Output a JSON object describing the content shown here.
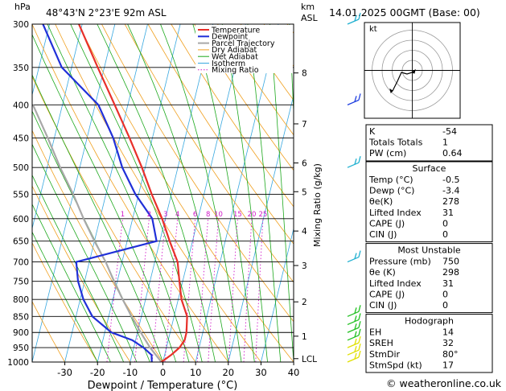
{
  "header": {
    "pressure_unit": "hPa",
    "location": "48°43'N  2°23'E  92m  ASL",
    "height_unit_line1": "km",
    "height_unit_line2": "ASL",
    "datetime": "14.01.2025  00GMT  (Base: 00)"
  },
  "footer": {
    "copyright": "© weatheronline.co.uk"
  },
  "colors": {
    "temperature": "#e8302a",
    "dewpoint": "#2030d8",
    "parcel": "#a8a8a8",
    "dry_adiabat": "#f0a020",
    "wet_adiabat": "#1ca81c",
    "isotherm": "#38a8e0",
    "mixing_ratio": "#d018c8"
  },
  "chart_data": {
    "type": "skew-t",
    "xlabel": "Dewpoint / Temperature (°C)",
    "ylabel_right": "Mixing Ratio (g/kg)",
    "x_ticks": [
      -30,
      -20,
      -10,
      0,
      10,
      20,
      30,
      40
    ],
    "pressure_ticks": [
      300,
      350,
      400,
      450,
      500,
      550,
      600,
      650,
      700,
      750,
      800,
      850,
      900,
      950,
      1000
    ],
    "height_ticks": [
      {
        "label": "8",
        "p": 357
      },
      {
        "label": "7",
        "p": 428
      },
      {
        "label": "6",
        "p": 492
      },
      {
        "label": "5",
        "p": 545
      },
      {
        "label": "4",
        "p": 627
      },
      {
        "label": "3",
        "p": 709
      },
      {
        "label": "2",
        "p": 807
      },
      {
        "label": "1",
        "p": 912
      },
      {
        "label": "LCL",
        "p": 988
      }
    ],
    "mixing_ratio_labels": [
      {
        "label": "1",
        "value": 1
      },
      {
        "label": "2",
        "value": 2
      },
      {
        "label": "3",
        "value": 3
      },
      {
        "label": "4",
        "value": 4
      },
      {
        "label": "6",
        "value": 6
      },
      {
        "label": "8",
        "value": 8
      },
      {
        "label": "10",
        "value": 10
      },
      {
        "label": "15",
        "value": 15
      },
      {
        "label": "20",
        "value": 20
      },
      {
        "label": "25",
        "value": 25
      }
    ],
    "legend": [
      "Temperature",
      "Dewpoint",
      "Parcel Trajectory",
      "Dry Adiabat",
      "Wet Adiabat",
      "Isotherm",
      "Mixing Ratio"
    ],
    "temperature": [
      {
        "p": 1000,
        "t": -0.5
      },
      {
        "p": 975,
        "t": 2
      },
      {
        "p": 950,
        "t": 4
      },
      {
        "p": 925,
        "t": 5
      },
      {
        "p": 900,
        "t": 5
      },
      {
        "p": 850,
        "t": 4
      },
      {
        "p": 800,
        "t": 1
      },
      {
        "p": 750,
        "t": -1
      },
      {
        "p": 700,
        "t": -3
      },
      {
        "p": 650,
        "t": -7
      },
      {
        "p": 600,
        "t": -11
      },
      {
        "p": 550,
        "t": -16
      },
      {
        "p": 500,
        "t": -21
      },
      {
        "p": 450,
        "t": -27
      },
      {
        "p": 400,
        "t": -34
      },
      {
        "p": 350,
        "t": -42
      },
      {
        "p": 300,
        "t": -51
      }
    ],
    "dewpoint": [
      {
        "p": 1000,
        "t": -3.4
      },
      {
        "p": 975,
        "t": -4
      },
      {
        "p": 950,
        "t": -7
      },
      {
        "p": 925,
        "t": -11
      },
      {
        "p": 900,
        "t": -18
      },
      {
        "p": 850,
        "t": -25
      },
      {
        "p": 800,
        "t": -29
      },
      {
        "p": 750,
        "t": -32
      },
      {
        "p": 700,
        "t": -34
      },
      {
        "p": 650,
        "t": -11
      },
      {
        "p": 600,
        "t": -14
      },
      {
        "p": 550,
        "t": -21
      },
      {
        "p": 500,
        "t": -27
      },
      {
        "p": 450,
        "t": -32
      },
      {
        "p": 400,
        "t": -39
      },
      {
        "p": 350,
        "t": -53
      },
      {
        "p": 300,
        "t": -62
      }
    ],
    "parcel": [
      {
        "p": 1000,
        "t": -0.5
      },
      {
        "p": 988,
        "t": -1.5
      },
      {
        "p": 950,
        "t": -5
      },
      {
        "p": 900,
        "t": -9
      },
      {
        "p": 850,
        "t": -13
      },
      {
        "p": 800,
        "t": -17
      },
      {
        "p": 750,
        "t": -21
      },
      {
        "p": 700,
        "t": -25
      },
      {
        "p": 650,
        "t": -30
      },
      {
        "p": 600,
        "t": -35
      },
      {
        "p": 550,
        "t": -40
      },
      {
        "p": 500,
        "t": -46
      },
      {
        "p": 450,
        "t": -52
      },
      {
        "p": 400,
        "t": -59
      }
    ],
    "wind_barbs": [
      {
        "p": 1000,
        "color": "#e0e000"
      },
      {
        "p": 975,
        "color": "#e0e000"
      },
      {
        "p": 950,
        "color": "#e0e000"
      },
      {
        "p": 925,
        "color": "#20c020"
      },
      {
        "p": 900,
        "color": "#20c020"
      },
      {
        "p": 875,
        "color": "#20c020"
      },
      {
        "p": 850,
        "color": "#20c020"
      },
      {
        "p": 700,
        "color": "#20b0d0"
      },
      {
        "p": 500,
        "color": "#20b0d0"
      },
      {
        "p": 400,
        "color": "#2040e0"
      },
      {
        "p": 300,
        "color": "#20b0d0"
      }
    ]
  },
  "hodograph": {
    "unit_label": "kt"
  },
  "indices": {
    "rows": [
      {
        "label": "K",
        "value": "-54"
      },
      {
        "label": "Totals Totals",
        "value": "1"
      },
      {
        "label": "PW (cm)",
        "value": "0.64"
      }
    ]
  },
  "surface": {
    "title": "Surface",
    "rows": [
      {
        "label": "Temp (°C)",
        "value": "-0.5"
      },
      {
        "label": "Dewp (°C)",
        "value": "-3.4"
      },
      {
        "label": "θe(K)",
        "value": "278"
      },
      {
        "label": "Lifted Index",
        "value": "31"
      },
      {
        "label": "CAPE (J)",
        "value": "0"
      },
      {
        "label": "CIN (J)",
        "value": "0"
      }
    ]
  },
  "most_unstable": {
    "title": "Most Unstable",
    "rows": [
      {
        "label": "Pressure (mb)",
        "value": "750"
      },
      {
        "label": "θe (K)",
        "value": "298"
      },
      {
        "label": "Lifted Index",
        "value": "31"
      },
      {
        "label": "CAPE (J)",
        "value": "0"
      },
      {
        "label": "CIN (J)",
        "value": "0"
      }
    ]
  },
  "hodograph_table": {
    "title": "Hodograph",
    "rows": [
      {
        "label": "EH",
        "value": "14"
      },
      {
        "label": "SREH",
        "value": "32"
      },
      {
        "label": "StmDir",
        "value": "80°"
      },
      {
        "label": "StmSpd (kt)",
        "value": "17"
      }
    ]
  }
}
